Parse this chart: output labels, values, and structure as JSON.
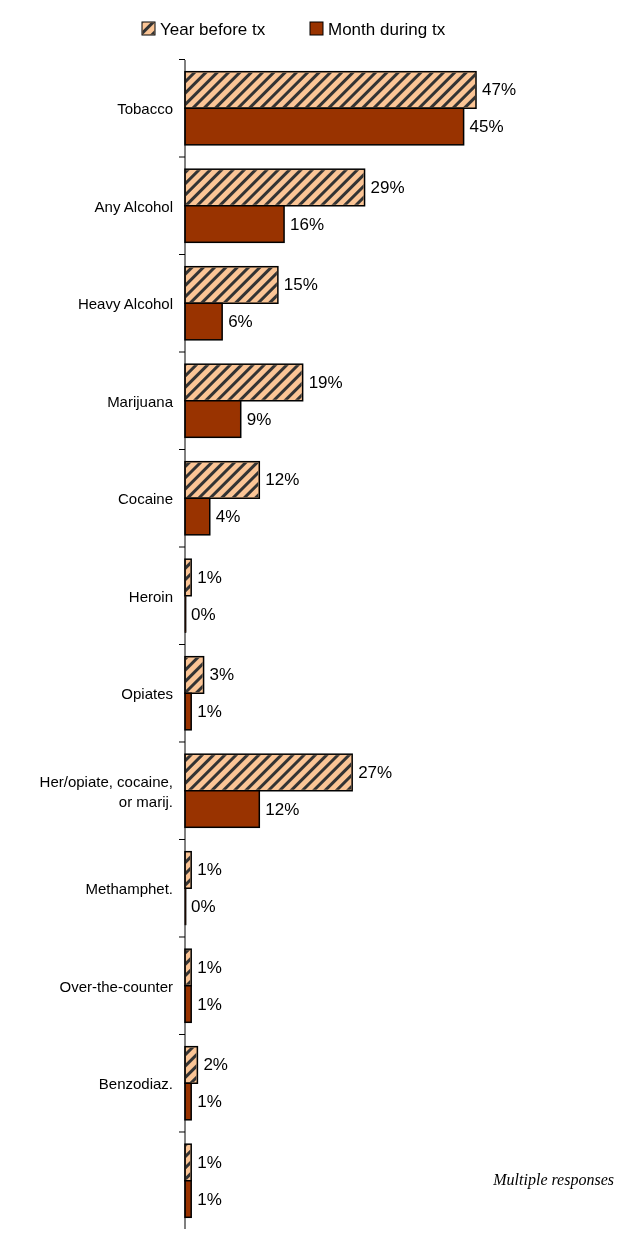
{
  "chart_data": {
    "type": "bar",
    "orientation": "horizontal",
    "categories": [
      "Tobacco",
      "Any Alcohol",
      "Heavy Alcohol",
      "Marijuana",
      "Cocaine",
      "Heroin",
      "Opiates",
      "Her/opiate, cocaine, or marij.",
      "Methamphet.",
      "Over-the-counter",
      "Benzodiaz.",
      null
    ],
    "series": [
      {
        "name": "Year before tx",
        "color": "#fbc596",
        "values": [
          47,
          29,
          15,
          19,
          12,
          1,
          3,
          27,
          1,
          1,
          2,
          1
        ],
        "value_labels": [
          "47%",
          "29%",
          "15%",
          "19%",
          "12%",
          "1%",
          "3%",
          "27%",
          "1%",
          "1%",
          "2%",
          "1%"
        ]
      },
      {
        "name": "Month during tx",
        "color": "#993300",
        "values": [
          45,
          16,
          6,
          9,
          4,
          0,
          1,
          12,
          0,
          1,
          1,
          1
        ],
        "value_labels": [
          "45%",
          "16%",
          "6%",
          "9%",
          "4%",
          "0%",
          "1%",
          "12%",
          "0%",
          "1%",
          "1%",
          "1%"
        ]
      }
    ],
    "legend": "top",
    "annotations": [
      "Multiple responses"
    ]
  }
}
